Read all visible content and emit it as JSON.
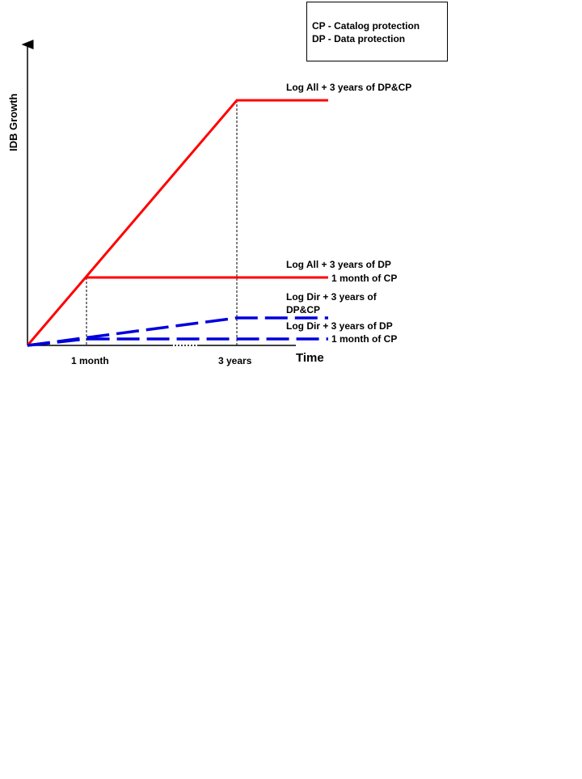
{
  "legend": {
    "lines": [
      "CP - Catalog protection",
      "DP - Data protection"
    ]
  },
  "chart_data": {
    "type": "line",
    "ylabel": "IDB Growth",
    "xlabel": "Time",
    "x_ticks": [
      "1 month",
      "3 years"
    ],
    "colors": {
      "log_all": "#ff0000",
      "log_dir": "#0000dd"
    },
    "series": [
      {
        "label_lines": [
          "Log All + 3 years of DP&CP"
        ],
        "style": "solid",
        "color": "#ff0000",
        "points": [
          [
            "start",
            0
          ],
          [
            "3 years",
            100
          ],
          [
            "end",
            100
          ]
        ]
      },
      {
        "label_lines": [
          "Log All + 3 years of DP",
          "1 month of CP"
        ],
        "style": "solid",
        "color": "#ff0000",
        "points": [
          [
            "1 month",
            28
          ],
          [
            "end",
            28
          ]
        ]
      },
      {
        "label_lines": [
          "Log Dir + 3 years of",
          "DP&CP"
        ],
        "style": "dashed",
        "color": "#0000dd",
        "points": [
          [
            "start",
            0
          ],
          [
            "3 years",
            11
          ],
          [
            "end",
            11
          ]
        ]
      },
      {
        "label_lines": [
          "Log Dir + 3 years of DP",
          "1 month of CP"
        ],
        "style": "dashed",
        "color": "#0000dd",
        "points": [
          [
            "start",
            0
          ],
          [
            "1 month",
            3
          ],
          [
            "end",
            3
          ]
        ]
      }
    ]
  }
}
